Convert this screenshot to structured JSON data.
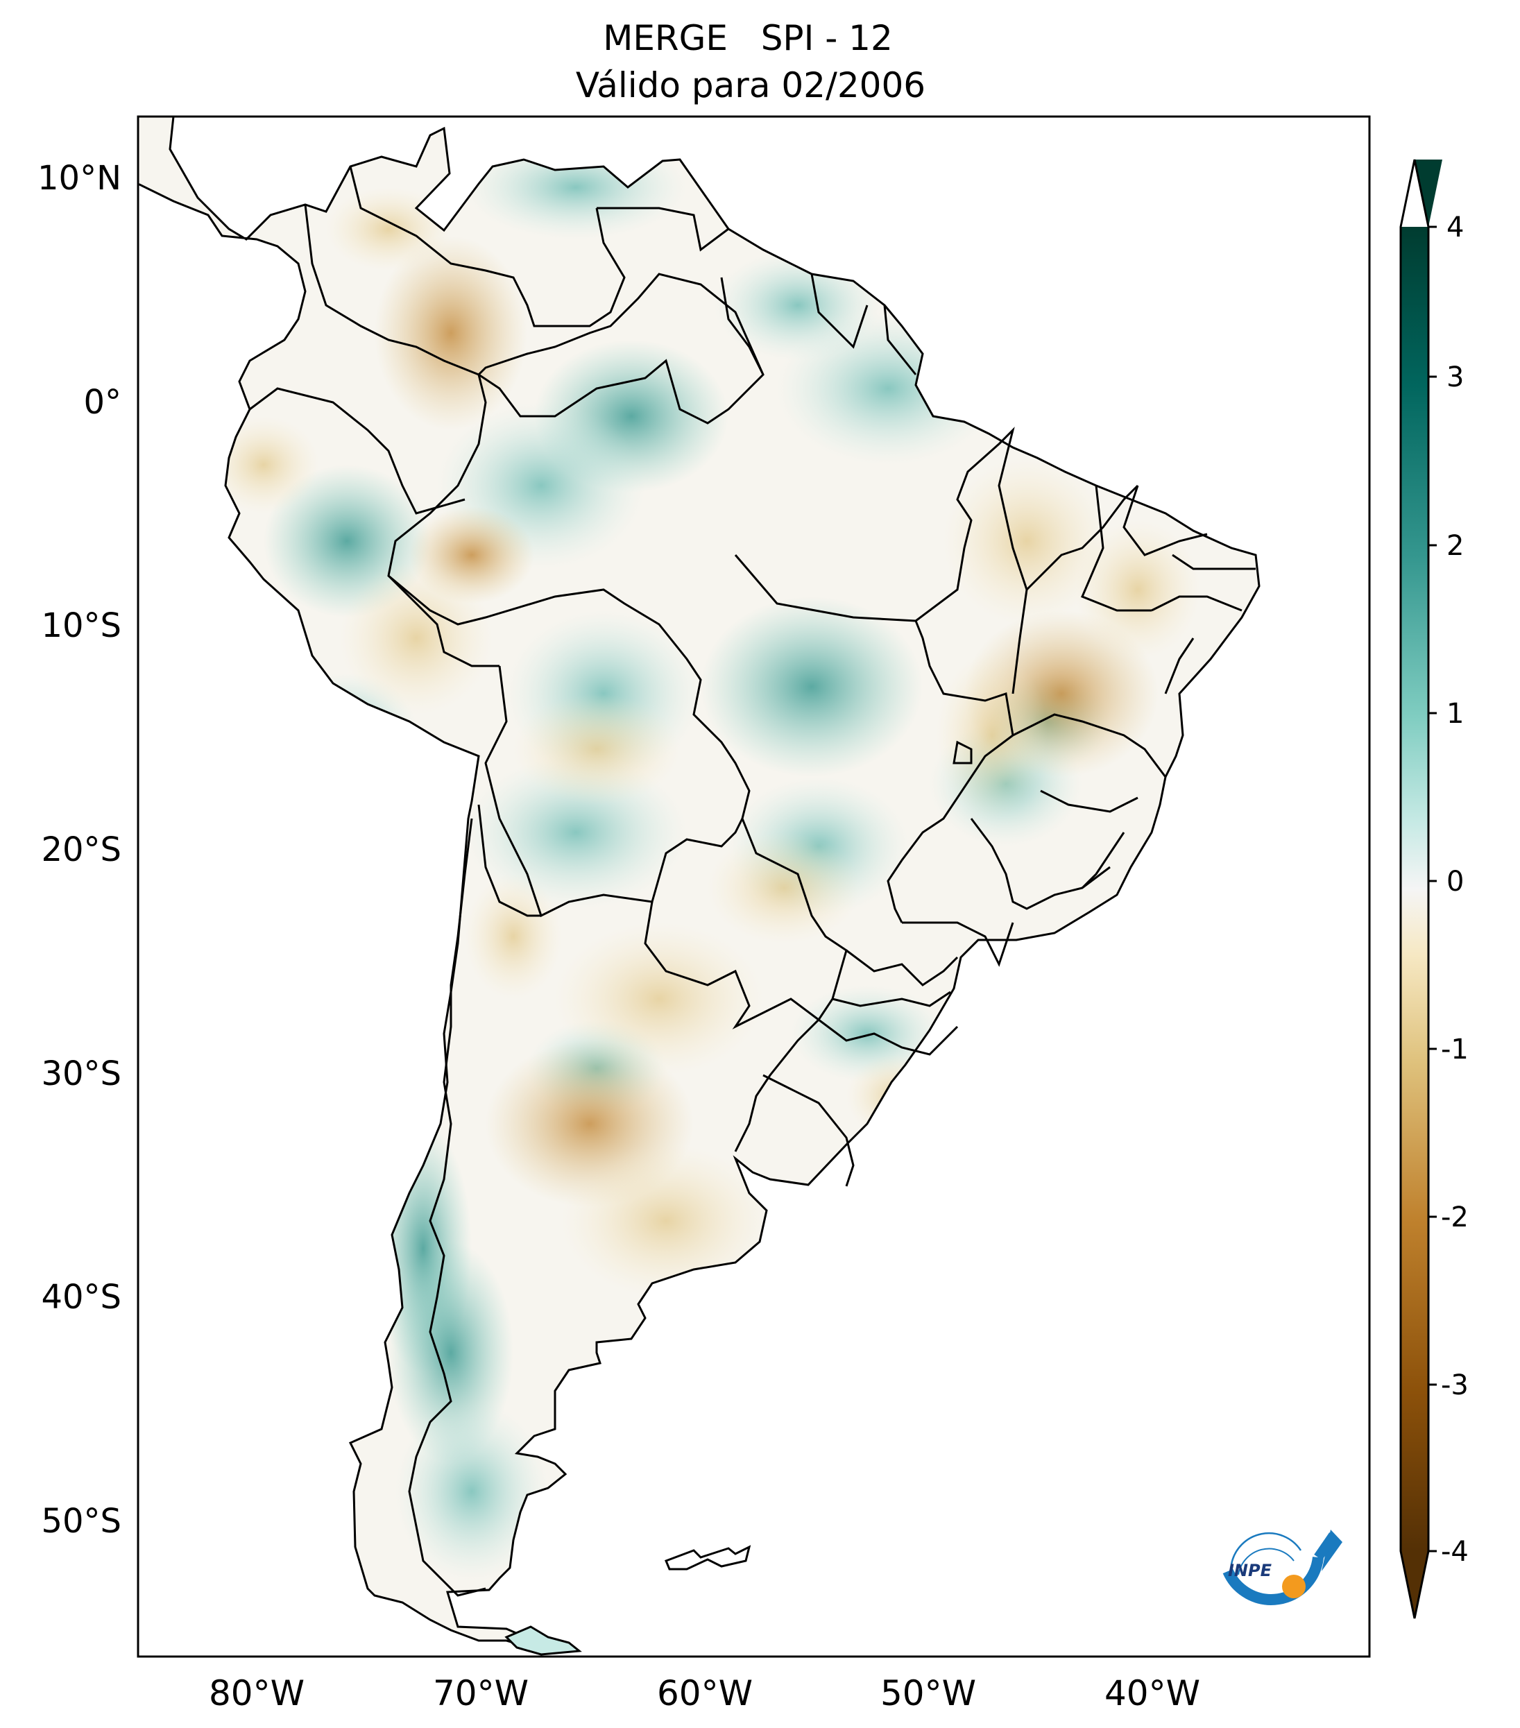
{
  "title": {
    "line1": "MERGE   SPI - 12",
    "line2": "Válido para 02/2006"
  },
  "axes": {
    "lat_labels": [
      "10°N",
      "0°",
      "10°S",
      "20°S",
      "30°S",
      "40°S",
      "50°S"
    ],
    "lon_labels": [
      "80°W",
      "70°W",
      "60°W",
      "50°W",
      "40°W"
    ]
  },
  "colorbar": {
    "tick_labels": [
      "4",
      "3",
      "2",
      "1",
      "0",
      "-1",
      "-2",
      "-3",
      "-4"
    ],
    "range": [
      -4,
      4
    ],
    "extend": "both",
    "colormap": "BrBG",
    "colors": {
      "dry_extreme": "#543005",
      "dry": "#bf812d",
      "dry_light": "#f6e8c3",
      "neutral": "#f5f5f5",
      "wet_light": "#c7eae5",
      "wet": "#35978f",
      "wet_extreme": "#003c30"
    }
  },
  "logo": {
    "text": "INPE",
    "icon": "inpe-logo-icon",
    "colors": {
      "arc": "#1a7abf",
      "dot": "#f39a1e"
    }
  }
}
